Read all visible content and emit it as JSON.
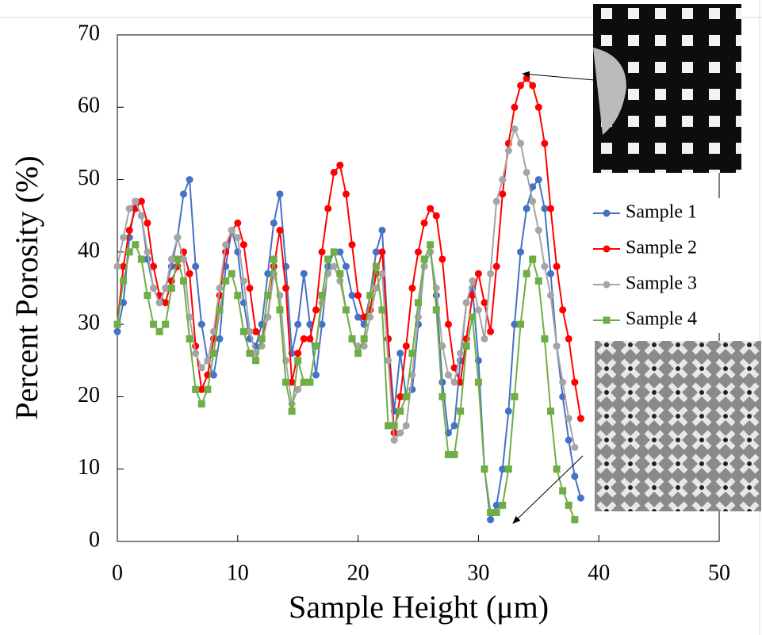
{
  "chart_data": {
    "type": "line",
    "x_label": "Sample Height  (μm)",
    "y_label": "Percent Porosity (%)",
    "xlim": [
      0,
      50
    ],
    "ylim": [
      0,
      70
    ],
    "xticks": [
      0,
      10,
      20,
      30,
      40,
      50
    ],
    "yticks": [
      0,
      10,
      20,
      30,
      40,
      50,
      60,
      70
    ],
    "grid": false,
    "legend": "right",
    "x": [
      0,
      0.5,
      1,
      1.5,
      2,
      2.5,
      3,
      3.5,
      4,
      4.5,
      5,
      5.5,
      6,
      6.5,
      7,
      7.5,
      8,
      8.5,
      9,
      9.5,
      10,
      10.5,
      11,
      11.5,
      12,
      12.5,
      13,
      13.5,
      14,
      14.5,
      15,
      15.5,
      16,
      16.5,
      17,
      17.5,
      18,
      18.5,
      19,
      19.5,
      20,
      20.5,
      21,
      21.5,
      22,
      22.5,
      23,
      23.5,
      24,
      24.5,
      25,
      25.5,
      26,
      26.5,
      27,
      27.5,
      28,
      28.5,
      29,
      29.5,
      30,
      30.5,
      31,
      31.5,
      32,
      32.5,
      33,
      33.5,
      34,
      34.5,
      35,
      35.5,
      36,
      36.5,
      37,
      37.5,
      38,
      38.5
    ],
    "series": [
      {
        "name": "Sample 1",
        "color": "#4472c4",
        "marker": "circle",
        "values": [
          29,
          33,
          42,
          47,
          45,
          39,
          35,
          33,
          35,
          38,
          42,
          48,
          50,
          38,
          30,
          25,
          23,
          28,
          38,
          43,
          40,
          33,
          28,
          27,
          30,
          37,
          44,
          48,
          38,
          26,
          30,
          37,
          30,
          23,
          30,
          38,
          40,
          40,
          38,
          34,
          31,
          30,
          34,
          40,
          43,
          28,
          18,
          26,
          20,
          21,
          30,
          38,
          40,
          34,
          22,
          15,
          16,
          25,
          33,
          35,
          25,
          10,
          3,
          5,
          10,
          18,
          30,
          40,
          46,
          49,
          50,
          46,
          37,
          27,
          20,
          14,
          9,
          6
        ]
      },
      {
        "name": "Sample 2",
        "color": "#ff0000",
        "marker": "circle",
        "values": [
          30,
          38,
          43,
          46,
          47,
          44,
          38,
          34,
          33,
          36,
          38,
          40,
          37,
          27,
          21,
          23,
          28,
          34,
          40,
          43,
          44,
          41,
          35,
          29,
          28,
          31,
          38,
          43,
          35,
          22,
          26,
          28,
          28,
          32,
          40,
          46,
          51,
          52,
          48,
          41,
          34,
          31,
          32,
          37,
          40,
          28,
          15,
          20,
          27,
          35,
          40,
          44,
          46,
          45,
          39,
          30,
          24,
          22,
          28,
          34,
          37,
          33,
          29,
          38,
          48,
          55,
          60,
          63,
          64,
          63,
          60,
          55,
          46,
          38,
          32,
          28,
          22,
          17
        ]
      },
      {
        "name": "Sample 3",
        "color": "#a5a5a5",
        "marker": "circle",
        "values": [
          38,
          42,
          46,
          47,
          45,
          40,
          35,
          33,
          35,
          39,
          42,
          39,
          31,
          26,
          24,
          25,
          29,
          35,
          41,
          43,
          42,
          36,
          29,
          26,
          27,
          31,
          37,
          34,
          25,
          19,
          21,
          22,
          22,
          27,
          33,
          37,
          38,
          36,
          32,
          28,
          27,
          27,
          31,
          35,
          37,
          25,
          14,
          15,
          16,
          23,
          31,
          38,
          40,
          35,
          27,
          23,
          22,
          26,
          33,
          36,
          32,
          28,
          37,
          47,
          50,
          54,
          57,
          55,
          51,
          47,
          43,
          38,
          34,
          27,
          22,
          17,
          13,
          null
        ]
      },
      {
        "name": "Sample 4",
        "color": "#70ad47",
        "marker": "square",
        "values": [
          30,
          36,
          40,
          41,
          39,
          34,
          30,
          29,
          30,
          35,
          39,
          36,
          28,
          21,
          19,
          21,
          26,
          32,
          36,
          37,
          34,
          29,
          26,
          25,
          28,
          34,
          39,
          32,
          22,
          18,
          25,
          22,
          22,
          27,
          34,
          39,
          40,
          37,
          32,
          28,
          26,
          28,
          34,
          38,
          32,
          16,
          16,
          18,
          20,
          26,
          33,
          39,
          41,
          32,
          20,
          12,
          12,
          18,
          27,
          31,
          22,
          10,
          4,
          4,
          5,
          10,
          20,
          30,
          37,
          39,
          36,
          28,
          18,
          10,
          7,
          5,
          3,
          null
        ]
      }
    ]
  }
}
